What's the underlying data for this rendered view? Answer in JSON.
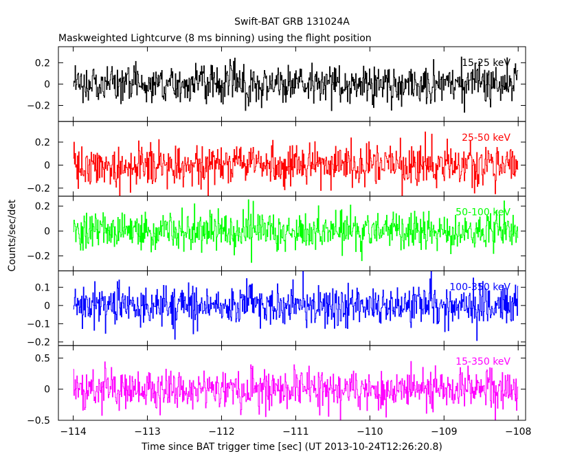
{
  "chart_data": {
    "type": "line",
    "title": "Swift-BAT GRB 131024A",
    "subtitle": "Maskweighted Lightcurve (8 ms binning) using the flight position",
    "xlabel": "Time since BAT trigger time [sec] (UT 2013-10-24T12:26:20.8)",
    "ylabel": "Counts/sec/det",
    "xlim": [
      -114.2,
      -107.9
    ],
    "x_ticks": [
      -114,
      -113,
      -112,
      -111,
      -110,
      -109,
      -108
    ],
    "x_tick_labels": [
      "−114",
      "−113",
      "−112",
      "−111",
      "−110",
      "−109",
      "−108"
    ],
    "grid": false,
    "bin_width_s": 0.008,
    "data_range": [
      -114.0,
      -108.0
    ],
    "panels": [
      {
        "name": "15-25 keV",
        "color": "#000000",
        "ylim": [
          -0.35,
          0.35
        ],
        "ticks": [
          -0.2,
          0,
          0.2
        ],
        "tick_labels": [
          "−0.2",
          "0",
          "0.2"
        ],
        "noise_sigma": 0.09
      },
      {
        "name": "25-50 keV",
        "color": "#ff0000",
        "ylim": [
          -0.27,
          0.38
        ],
        "ticks": [
          -0.2,
          0,
          0.2
        ],
        "tick_labels": [
          "−0.2",
          "0",
          "0.2"
        ],
        "noise_sigma": 0.09
      },
      {
        "name": "50-100 keV",
        "color": "#00ff00",
        "ylim": [
          -0.32,
          0.28
        ],
        "ticks": [
          -0.2,
          0,
          0.2
        ],
        "tick_labels": [
          "−0.2",
          "0",
          "0.2"
        ],
        "noise_sigma": 0.075
      },
      {
        "name": "100-350 keV",
        "color": "#0000ff",
        "ylim": [
          -0.22,
          0.19
        ],
        "ticks": [
          -0.2,
          -0.1,
          0,
          0.1
        ],
        "tick_labels": [
          "−0.2",
          "−0.1",
          "0",
          "0.1"
        ],
        "noise_sigma": 0.055
      },
      {
        "name": "15-350 keV",
        "color": "#ff00ff",
        "ylim": [
          -0.5,
          0.7
        ],
        "ticks": [
          -0.5,
          0,
          0.5
        ],
        "tick_labels": [
          "−0.5",
          "0",
          "0.5"
        ],
        "noise_sigma": 0.16
      }
    ]
  }
}
